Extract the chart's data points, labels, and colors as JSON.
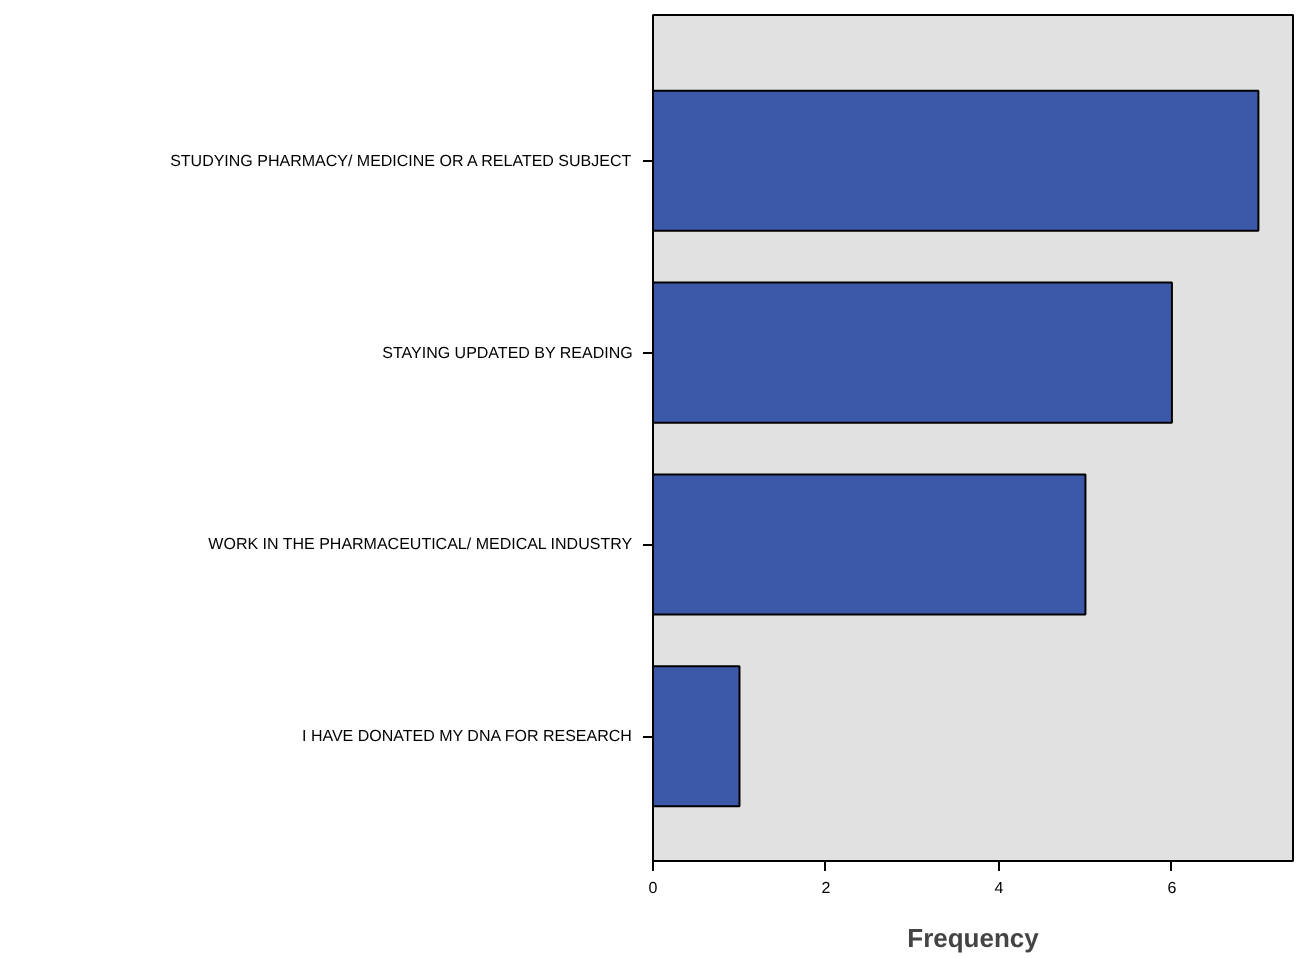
{
  "chart_data": {
    "type": "bar",
    "orientation": "horizontal",
    "categories": [
      "STUDYING PHARMACY/ MEDICINE OR A RELATED SUBJECT",
      "STAYING UPDATED BY READING",
      "WORK IN THE PHARMACEUTICAL/ MEDICAL INDUSTRY",
      "I HAVE DONATED MY DNA FOR RESEARCH"
    ],
    "values": [
      7,
      6,
      5,
      1
    ],
    "color": "#3c58a8",
    "xlabel": "Frequency",
    "xlim": [
      0,
      7.4
    ],
    "xticks": [
      0,
      2,
      4,
      6
    ],
    "grid": false
  }
}
